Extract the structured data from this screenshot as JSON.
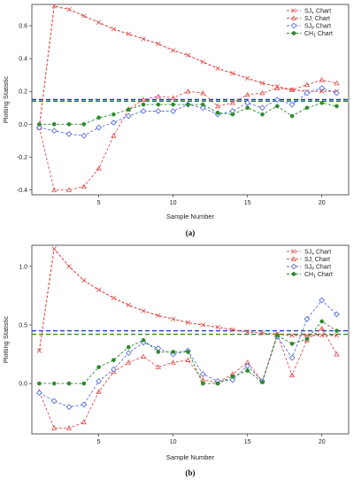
{
  "chart_data": [
    {
      "type": "line",
      "caption": "(a)",
      "xlabel": "Sample Number",
      "ylabel": "Plotting Statistic",
      "xlim": [
        0.5,
        21.8
      ],
      "ylim": [
        -0.43,
        0.73
      ],
      "xticks": [
        5,
        10,
        15,
        20
      ],
      "yticks": [
        -0.4,
        -0.2,
        0.0,
        0.2,
        0.4,
        0.6
      ],
      "ytick_labels": [
        "-0.4",
        "-0.2",
        "0.0",
        "0.2",
        "0.4",
        "0.6"
      ],
      "legend_position": "top-right",
      "x": [
        1,
        2,
        3,
        4,
        5,
        6,
        7,
        8,
        9,
        10,
        11,
        12,
        13,
        14,
        15,
        16,
        17,
        18,
        19,
        20,
        21
      ],
      "series": [
        {
          "name": "SJ+ Chart",
          "name_main": "SJ",
          "name_sub": "+",
          "color": "#e05050",
          "marker": "cross",
          "values": [
            -0.02,
            0.72,
            0.7,
            0.66,
            0.62,
            0.58,
            0.55,
            0.52,
            0.49,
            0.45,
            0.42,
            0.38,
            0.34,
            0.31,
            0.28,
            0.25,
            0.23,
            0.21,
            0.2,
            0.2,
            0.2
          ]
        },
        {
          "name": "SJ- Chart",
          "name_main": "SJ",
          "name_sub": "-",
          "color": "#e05050",
          "marker": "triangle",
          "values": [
            -0.02,
            -0.4,
            -0.4,
            -0.38,
            -0.27,
            -0.07,
            0.09,
            0.15,
            0.17,
            0.16,
            0.2,
            0.19,
            0.11,
            0.13,
            0.18,
            0.19,
            0.22,
            0.21,
            0.24,
            0.27,
            0.25
          ]
        },
        {
          "name": "SJ# Chart",
          "name_main": "SJ",
          "name_sub": "#",
          "color": "#5a6fe0",
          "marker": "diamond",
          "values": [
            -0.02,
            -0.04,
            -0.06,
            -0.07,
            -0.02,
            0.01,
            0.05,
            0.08,
            0.08,
            0.08,
            0.12,
            0.1,
            0.06,
            0.08,
            0.13,
            0.1,
            0.15,
            0.12,
            0.19,
            0.22,
            0.19
          ]
        },
        {
          "name": "CH1 Chart",
          "name_main": "CH",
          "name_sub": "1",
          "color": "#2f8a2f",
          "marker": "dot",
          "values": [
            0.0,
            0.0,
            0.0,
            0.0,
            0.04,
            0.06,
            0.09,
            0.12,
            0.12,
            0.12,
            0.12,
            0.12,
            0.07,
            0.06,
            0.1,
            0.06,
            0.11,
            0.05,
            0.1,
            0.13,
            0.11
          ]
        }
      ],
      "limits": [
        {
          "value": 0.15,
          "color": "#1f3fbf"
        },
        {
          "value": 0.14,
          "color": "#2f8a2f"
        }
      ]
    },
    {
      "type": "line",
      "caption": "(b)",
      "xlabel": "Sample Number",
      "ylabel": "Plotting Statistic",
      "xlim": [
        0.5,
        21.8
      ],
      "ylim": [
        -0.43,
        1.18
      ],
      "xticks": [
        5,
        10,
        15,
        20
      ],
      "yticks": [
        0.0,
        0.5,
        1.0
      ],
      "ytick_labels": [
        "0.0",
        "0.5",
        "1.0"
      ],
      "legend_position": "top-right",
      "x": [
        1,
        2,
        3,
        4,
        5,
        6,
        7,
        8,
        9,
        10,
        11,
        12,
        13,
        14,
        15,
        16,
        17,
        18,
        19,
        20,
        21
      ],
      "series": [
        {
          "name": "SJ+ Chart",
          "name_main": "SJ",
          "name_sub": "+",
          "color": "#e05050",
          "marker": "cross",
          "values": [
            0.28,
            1.15,
            1.0,
            0.88,
            0.8,
            0.73,
            0.67,
            0.62,
            0.58,
            0.55,
            0.52,
            0.5,
            0.48,
            0.46,
            0.44,
            0.43,
            0.42,
            0.41,
            0.41,
            0.41,
            0.41
          ]
        },
        {
          "name": "SJ- Chart",
          "name_main": "SJ",
          "name_sub": "-",
          "color": "#e05050",
          "marker": "triangle",
          "values": [
            -0.07,
            -0.38,
            -0.38,
            -0.33,
            -0.07,
            0.1,
            0.18,
            0.23,
            0.14,
            0.18,
            0.2,
            0.03,
            0.01,
            0.08,
            0.18,
            0.02,
            0.42,
            0.07,
            0.37,
            0.47,
            0.25
          ]
        },
        {
          "name": "SJ# Chart",
          "name_main": "SJ",
          "name_sub": "#",
          "color": "#5a6fe0",
          "marker": "diamond",
          "values": [
            -0.08,
            -0.15,
            -0.2,
            -0.18,
            0.02,
            0.12,
            0.26,
            0.35,
            0.3,
            0.25,
            0.28,
            0.08,
            0.02,
            0.03,
            0.15,
            0.02,
            0.4,
            0.22,
            0.55,
            0.71,
            0.59
          ]
        },
        {
          "name": "CH1 Chart",
          "name_main": "CH",
          "name_sub": "1",
          "color": "#2f8a2f",
          "marker": "dot",
          "values": [
            0.0,
            0.0,
            0.0,
            0.0,
            0.14,
            0.2,
            0.31,
            0.37,
            0.27,
            0.27,
            0.27,
            0.0,
            0.0,
            0.06,
            0.11,
            0.01,
            0.41,
            0.34,
            0.38,
            0.53,
            0.45
          ]
        }
      ],
      "limits": [
        {
          "value": 0.45,
          "color": "#1f3fbf"
        },
        {
          "value": 0.42,
          "color": "#2f8a2f"
        }
      ]
    }
  ]
}
